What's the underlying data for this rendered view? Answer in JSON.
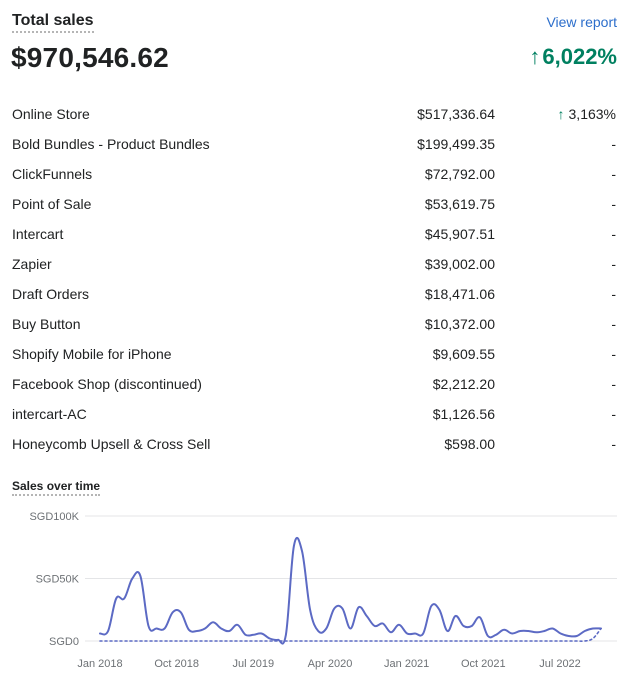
{
  "header": {
    "title": "Total sales",
    "view_report": "View report"
  },
  "summary": {
    "total": "$970,546.62",
    "change_arrow": "↑",
    "change": "6,022%"
  },
  "colors": {
    "accent_positive": "#008060",
    "link": "#2c6ecb",
    "series": "#5c6ac4"
  },
  "rows": [
    {
      "name": "Online Store",
      "amount": "$517,336.64",
      "change": "3,163%",
      "up": true
    },
    {
      "name": "Bold Bundles - Product Bundles",
      "amount": "$199,499.35",
      "change": "-",
      "up": false
    },
    {
      "name": "ClickFunnels",
      "amount": "$72,792.00",
      "change": "-",
      "up": false
    },
    {
      "name": "Point of Sale",
      "amount": "$53,619.75",
      "change": "-",
      "up": false
    },
    {
      "name": "Intercart",
      "amount": "$45,907.51",
      "change": "-",
      "up": false
    },
    {
      "name": "Zapier",
      "amount": "$39,002.00",
      "change": "-",
      "up": false
    },
    {
      "name": "Draft Orders",
      "amount": "$18,471.06",
      "change": "-",
      "up": false
    },
    {
      "name": "Buy Button",
      "amount": "$10,372.00",
      "change": "-",
      "up": false
    },
    {
      "name": "Shopify Mobile for iPhone",
      "amount": "$9,609.55",
      "change": "-",
      "up": false
    },
    {
      "name": "Facebook Shop (discontinued)",
      "amount": "$2,212.20",
      "change": "-",
      "up": false
    },
    {
      "name": "intercart-AC",
      "amount": "$1,126.56",
      "change": "-",
      "up": false
    },
    {
      "name": "Honeycomb Upsell & Cross Sell",
      "amount": "$598.00",
      "change": "-",
      "up": false
    }
  ],
  "chart_data": {
    "type": "line",
    "title": "Sales over time",
    "xlabel": "",
    "ylabel": "",
    "ylim": [
      0,
      100000
    ],
    "y_ticks": [
      {
        "value": 0,
        "label": "SGD0"
      },
      {
        "value": 50000,
        "label": "SGD50K"
      },
      {
        "value": 100000,
        "label": "SGD100K"
      }
    ],
    "x_ticks": [
      "Jan 2018",
      "Oct 2018",
      "Jul 2019",
      "Apr 2020",
      "Jan 2021",
      "Oct 2021",
      "Jul 2022"
    ],
    "grid": true,
    "series": [
      {
        "style": "solid",
        "values": [
          6000,
          8000,
          34000,
          34000,
          50000,
          52000,
          12000,
          10000,
          10000,
          23000,
          23000,
          9000,
          8000,
          10000,
          15000,
          10000,
          8000,
          13000,
          5000,
          5000,
          6000,
          2000,
          1000,
          5000,
          76000,
          72000,
          25000,
          8000,
          10000,
          26000,
          26000,
          10000,
          27000,
          20000,
          12000,
          14000,
          7000,
          13000,
          6000,
          6000,
          6000,
          28000,
          25000,
          8000,
          20000,
          12000,
          12000,
          19000,
          4000,
          5000,
          9000,
          6000,
          8000,
          8000,
          7000,
          8000,
          10000,
          6000,
          4000,
          4000,
          8000,
          10000,
          10000
        ]
      },
      {
        "style": "dotted",
        "values": [
          0,
          0,
          0,
          0,
          0,
          0,
          0,
          0,
          0,
          0,
          0,
          0,
          0,
          0,
          0,
          0,
          0,
          0,
          0,
          0,
          0,
          0,
          0,
          0,
          0,
          0,
          0,
          0,
          0,
          0,
          0,
          0,
          0,
          0,
          0,
          0,
          0,
          0,
          0,
          0,
          0,
          0,
          0,
          0,
          0,
          0,
          0,
          0,
          0,
          0,
          0,
          0,
          0,
          0,
          0,
          0,
          0,
          0,
          0,
          0,
          0,
          2000,
          10000
        ]
      }
    ]
  }
}
